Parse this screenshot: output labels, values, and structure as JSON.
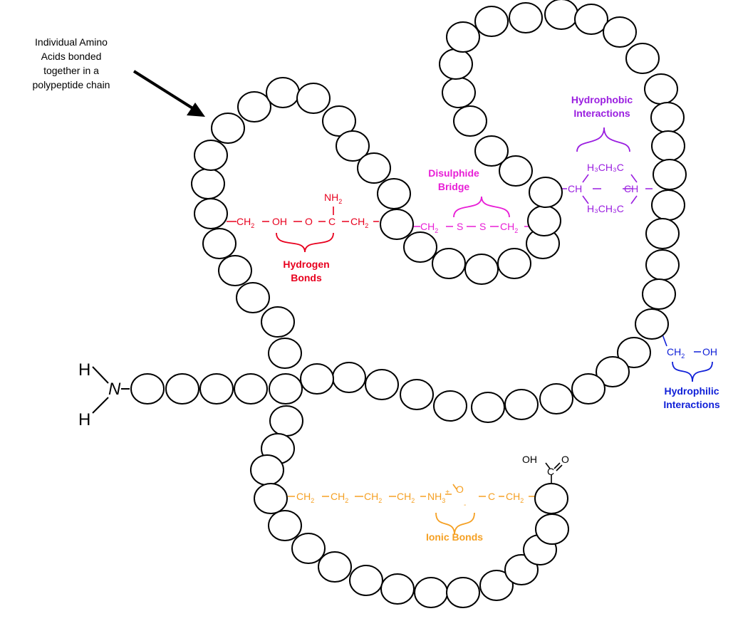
{
  "annotation": {
    "line1": "Individual Amino",
    "line2": "Acids bonded",
    "line3": "together in a",
    "line4": "polypeptide chain"
  },
  "amine": {
    "h_top": "H",
    "n": "N",
    "h_bottom": "H"
  },
  "hydrogen_bonds": {
    "title_line1": "Hydrogen",
    "title_line2": "Bonds",
    "nh2": "NH",
    "nh2_sub": "2",
    "ch2_left": "CH",
    "ch2_left_sub": "2",
    "oh": "OH",
    "o": "O",
    "c": "C",
    "ch2_right": "CH",
    "ch2_right_sub": "2"
  },
  "disulphide": {
    "title_line1": "Disulphide",
    "title_line2": "Bridge",
    "ch2_left": "CH",
    "ch2_left_sub": "2",
    "s1": "S",
    "s2": "S",
    "ch2_right": "CH",
    "ch2_right_sub": "2"
  },
  "hydrophobic": {
    "title_line1": "Hydrophobic",
    "title_line2": "Interactions",
    "ch_left": "CH",
    "ch_right": "CH",
    "top_group": "H₃CH₃C",
    "bottom_group": "H₃CH₃C"
  },
  "hydrophilic": {
    "title_line1": "Hydrophilic",
    "title_line2": "Interactions",
    "ch2": "CH",
    "ch2_sub": "2",
    "oh": "OH"
  },
  "ionic": {
    "title": "Ionic Bonds",
    "ch2_1": "CH",
    "ch2_2": "CH",
    "ch2_3": "CH",
    "ch2_4": "CH",
    "sub": "2",
    "nh3": "NH",
    "nh3_sub": "3",
    "plus": "+",
    "o": "O",
    "minus": "-",
    "c": "C",
    "ch2_5": "CH",
    "ch2_5_sub": "2"
  },
  "carboxyl": {
    "oh": "OH",
    "c": "C",
    "o": "O"
  },
  "colors": {
    "hydrogen": "#e8001e",
    "disulphide": "#e81ed6",
    "hydrophobic": "#9a1ee0",
    "hydrophilic": "#1020d8",
    "ionic": "#f5a023",
    "ink": "#000000"
  }
}
